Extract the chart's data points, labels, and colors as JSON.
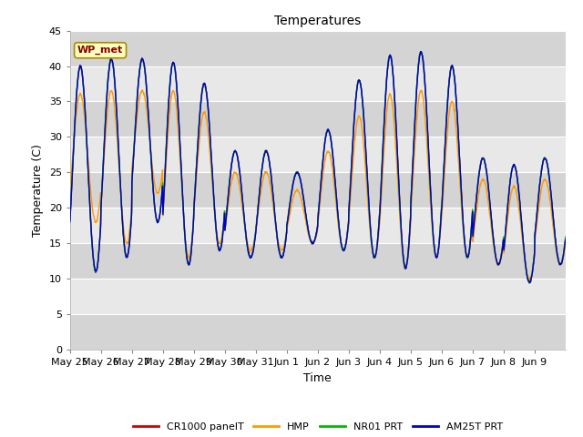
{
  "title": "Temperatures",
  "xlabel": "Time",
  "ylabel": "Temperature (C)",
  "ylim": [
    0,
    45
  ],
  "yticks": [
    0,
    5,
    10,
    15,
    20,
    25,
    30,
    35,
    40,
    45
  ],
  "annotation_text": "WP_met",
  "fig_bg_color": "#ffffff",
  "plot_bg_color": "#e8e8e8",
  "series": [
    "CR1000 panelT",
    "HMP",
    "NR01 PRT",
    "AM25T PRT"
  ],
  "colors": [
    "#cc0000",
    "#ff9900",
    "#00bb00",
    "#0000cc"
  ],
  "linewidth": 1.0,
  "x_tick_labels": [
    "May 25",
    "May 26",
    "May 27",
    "May 28",
    "May 29",
    "May 30",
    "May 31",
    "Jun 1",
    "Jun 2",
    "Jun 3",
    "Jun 4",
    "Jun 5",
    "Jun 6",
    "Jun 7",
    "Jun 8",
    "Jun 9"
  ],
  "x_tick_positions": [
    0,
    1,
    2,
    3,
    4,
    5,
    6,
    7,
    8,
    9,
    10,
    11,
    12,
    13,
    14,
    15
  ],
  "day_peaks": [
    40,
    41,
    41,
    40.5,
    37.5,
    28,
    28,
    25,
    31,
    38,
    41.5,
    42,
    40,
    27,
    26,
    27
  ],
  "day_mins": [
    11,
    13,
    18,
    12,
    14,
    13,
    13,
    15,
    14,
    13,
    11.5,
    13,
    13,
    12,
    9.5,
    12
  ],
  "hmp_peak_offset": [
    -4,
    -4.5,
    -4.5,
    -4,
    -4,
    -3,
    -3,
    -2.5,
    -3,
    -5,
    -5.5,
    -5.5,
    -5,
    -3,
    -3,
    -3
  ],
  "hmp_min_offset": [
    7,
    2,
    4,
    1,
    1,
    1,
    1,
    0,
    0,
    0,
    0,
    0,
    0,
    0,
    0.5,
    0
  ],
  "n_days": 16,
  "pts_per_day": 96
}
